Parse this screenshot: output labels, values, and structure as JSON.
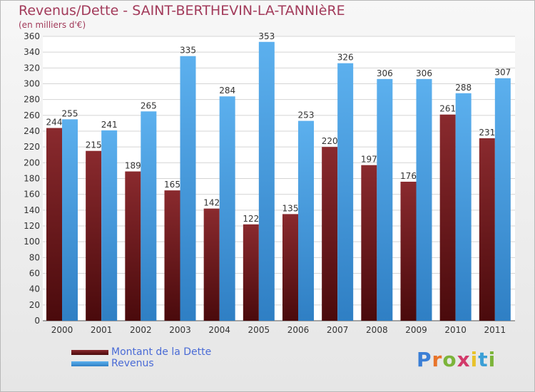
{
  "header": {
    "title": "Revenus/Dette - SAINT-BERTHEVIN-LA-TANNIèRE",
    "subtitle": "(en milliers d'€)"
  },
  "chart_data": {
    "type": "bar",
    "categories": [
      "2000",
      "2001",
      "2002",
      "2003",
      "2004",
      "2005",
      "2006",
      "2007",
      "2008",
      "2009",
      "2010",
      "2011"
    ],
    "series": [
      {
        "name": "Montant de la Dette",
        "color": "#7a1e22",
        "values": [
          244,
          215,
          189,
          165,
          142,
          122,
          135,
          220,
          197,
          176,
          261,
          231
        ]
      },
      {
        "name": "Revenus",
        "color": "#4ba3e6",
        "values": [
          255,
          241,
          265,
          335,
          284,
          353,
          253,
          326,
          306,
          306,
          288,
          307
        ]
      }
    ],
    "ylim": [
      0,
      360
    ],
    "ytick_step": 20,
    "grid": true,
    "legend_position": "bottom-left"
  },
  "logo": {
    "letters": [
      "P",
      "r",
      "o",
      "x",
      "i",
      "t",
      "i"
    ],
    "colors": [
      "#3b7fd6",
      "#e8742a",
      "#7cb43a",
      "#d23a6a",
      "#e8c22a",
      "#3b9fd6",
      "#7cb43a"
    ]
  }
}
